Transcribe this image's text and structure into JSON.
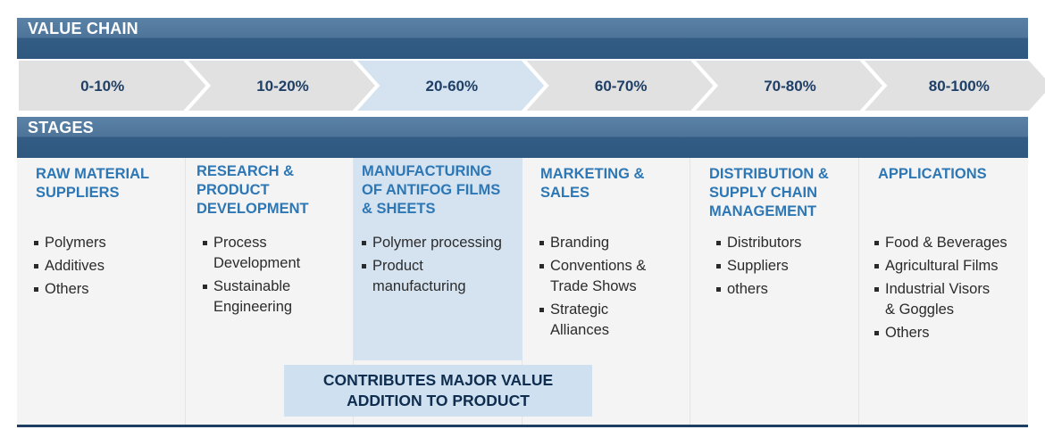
{
  "value_chain": {
    "title": "VALUE CHAIN",
    "steps": [
      {
        "label": "0-10%",
        "highlighted": false
      },
      {
        "label": "10-20%",
        "highlighted": false
      },
      {
        "label": "20-60%",
        "highlighted": true
      },
      {
        "label": "60-70%",
        "highlighted": false
      },
      {
        "label": "70-80%",
        "highlighted": false
      },
      {
        "label": "80-100%",
        "highlighted": false
      }
    ]
  },
  "stages": {
    "title": "STAGES",
    "columns": [
      {
        "title_lines": [
          "RAW MATERIAL",
          "SUPPLIERS"
        ],
        "items": [
          [
            "Polymers"
          ],
          [
            "Additives"
          ],
          [
            "Others"
          ]
        ]
      },
      {
        "title_lines": [
          "RESEARCH &",
          "PRODUCT",
          "DEVELOPMENT"
        ],
        "items": [
          [
            "Process",
            "Development"
          ],
          [
            "Sustainable",
            "Engineering"
          ]
        ]
      },
      {
        "title_lines": [
          "MANUFACTURING",
          "OF ANTIFOG FILMS",
          "& SHEETS"
        ],
        "items": [
          [
            "Polymer processing"
          ],
          [
            "Product",
            "manufacturing"
          ]
        ]
      },
      {
        "title_lines": [
          "MARKETING &",
          "SALES"
        ],
        "items": [
          [
            "Branding"
          ],
          [
            "Conventions &",
            "Trade Shows"
          ],
          [
            "Strategic",
            "Alliances"
          ]
        ]
      },
      {
        "title_lines": [
          "DISTRIBUTION &",
          "SUPPLY CHAIN",
          "MANAGEMENT"
        ],
        "items": [
          [
            "Distributors"
          ],
          [
            "Suppliers"
          ],
          [
            "others"
          ]
        ]
      },
      {
        "title_lines": [
          "APPLICATIONS"
        ],
        "items": [
          [
            "Food & Beverages"
          ],
          [
            "Agricultural Films"
          ],
          [
            "Industrial Visors",
            "& Goggles"
          ],
          [
            "Others"
          ]
        ]
      }
    ]
  },
  "callout": {
    "lines": [
      "CONTRIBUTES MAJOR VALUE",
      "ADDITION TO PRODUCT"
    ]
  },
  "colors": {
    "bar_light": "#5a81a6",
    "bar_dark": "#2f5880",
    "arrow_fill": "#e1e1e1",
    "arrow_highlight": "#d5e3f1",
    "heading_blue": "#2e77b5",
    "step_text": "#1f3f66",
    "callout_text": "#0f2d4f"
  }
}
